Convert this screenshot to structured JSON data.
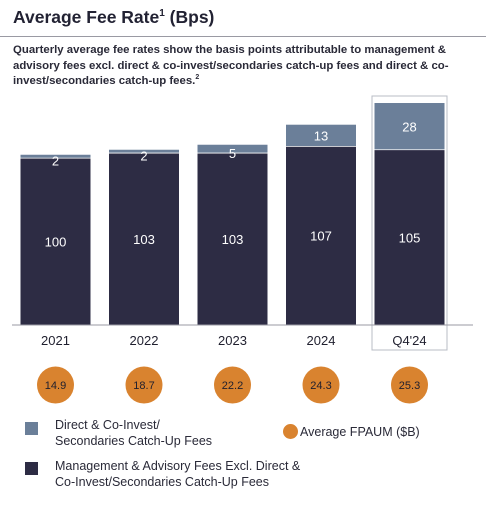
{
  "header": {
    "title": "Average Fee Rate",
    "title_sup": "1",
    "title_suffix": " (Bps)",
    "subtitle": "Quarterly average fee rates show the basis points attributable to management & advisory fees excl. direct & co-invest/secondaries catch-up fees and direct & co-invest/secondaries catch-up fees.",
    "subtitle_sup": "2"
  },
  "colors": {
    "management": "#2d2c44",
    "direct": "#6b7f99",
    "fpaum": "#d9832f",
    "axis": "#9a9aa3",
    "highlight_border": "#b8bcc6"
  },
  "chart_data": {
    "type": "bar",
    "stacked": true,
    "categories": [
      "2021",
      "2022",
      "2023",
      "2024",
      "Q4'24"
    ],
    "series": [
      {
        "name": "Management & Advisory Fees Excl. Direct & Co-Invest/Secondaries Catch-Up Fees",
        "values": [
          100,
          103,
          103,
          107,
          105
        ]
      },
      {
        "name": "Direct & Co-Invest/ Secondaries Catch-Up Fees",
        "values": [
          2,
          2,
          5,
          13,
          28
        ]
      }
    ],
    "secondary": {
      "name": "Average FPAUM ($B)",
      "values": [
        14.9,
        18.7,
        22.2,
        24.3,
        25.3
      ]
    },
    "highlighted_category": "Q4'24",
    "ylim": [
      0,
      136
    ],
    "grid": false,
    "legend_position": "bottom"
  },
  "legend": {
    "direct_label_1": "Direct & Co-Invest/",
    "direct_label_2": "Secondaries Catch-Up Fees",
    "fpaum_label": "Average FPAUM ($B)",
    "mgmt_label_1": "Management & Advisory Fees Excl. Direct &",
    "mgmt_label_2": "Co-Invest/Secondaries Catch-Up Fees"
  }
}
